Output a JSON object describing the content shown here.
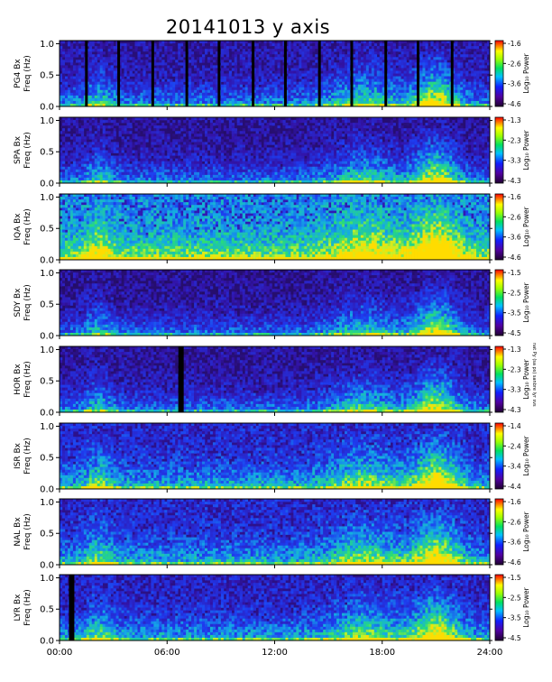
{
  "title": "20141013 y axis",
  "side_note": "nat Py (sa ps) sanbre lyr svs",
  "colors": {
    "background": "#ffffff",
    "spectrogram_low": "#1a1060",
    "spectrogram_mid": "#2040e0",
    "spectrogram_high": "#20c0c0",
    "hot": "#ffff00"
  },
  "chart_data": {
    "type": "heatmap",
    "xlabel": "",
    "x_ticks": [
      "00:00",
      "06:00",
      "12:00",
      "18:00",
      "24:00"
    ],
    "xlim": [
      0,
      24
    ],
    "y_ticks": [
      "1.0",
      "0.5",
      "0.0"
    ],
    "ylim": [
      0,
      1.05
    ],
    "colorbar_label": "Log₁₀ Power",
    "panels": [
      {
        "station": "PG4",
        "ylabel": "PG4 Bx",
        "ylabel2": "Freq (Hz)",
        "cbar_ticks": [
          "-1.6",
          "-2.6",
          "-3.6",
          "-4.6"
        ],
        "base": 0.25,
        "gaps": [
          1.5,
          3.3,
          5.2,
          7.1,
          8.9,
          10.8,
          12.6,
          14.5,
          16.3,
          18.2,
          20.0,
          21.9
        ]
      },
      {
        "station": "SPA",
        "ylabel": "SPA Bx",
        "ylabel2": "Freq (Hz)",
        "cbar_ticks": [
          "-1.3",
          "-2.3",
          "-3.3",
          "-4.3"
        ],
        "base": 0.22,
        "gaps": []
      },
      {
        "station": "IQA",
        "ylabel": "IQA Bx",
        "ylabel2": "Freq (Hz)",
        "cbar_ticks": [
          "-1.6",
          "-2.6",
          "-3.6",
          "-4.6"
        ],
        "base": 0.55,
        "gaps": []
      },
      {
        "station": "SDY",
        "ylabel": "SDY Bx",
        "ylabel2": "Freq (Hz)",
        "cbar_ticks": [
          "-1.5",
          "-2.5",
          "-3.5",
          "-4.5"
        ],
        "base": 0.2,
        "gaps": []
      },
      {
        "station": "HOR",
        "ylabel": "HOR Bx",
        "ylabel2": "Freq (Hz)",
        "cbar_ticks": [
          "-1.3",
          "-2.3",
          "-3.3",
          "-4.3"
        ],
        "base": 0.22,
        "gaps": [
          6.7
        ]
      },
      {
        "station": "ISR",
        "ylabel": "ISR Bx",
        "ylabel2": "Freq (Hz)",
        "cbar_ticks": [
          "-1.4",
          "-2.4",
          "-3.4",
          "-4.4"
        ],
        "base": 0.35,
        "gaps": []
      },
      {
        "station": "NAL",
        "ylabel": "NAL Bx",
        "ylabel2": "Freq (Hz)",
        "cbar_ticks": [
          "-1.6",
          "-2.6",
          "-3.6",
          "-4.6"
        ],
        "base": 0.35,
        "gaps": []
      },
      {
        "station": "LYR",
        "ylabel": "LYR Bx",
        "ylabel2": "Freq (Hz)",
        "cbar_ticks": [
          "-1.5",
          "-2.5",
          "-3.5",
          "-4.5"
        ],
        "base": 0.32,
        "gaps": [
          0.6
        ]
      }
    ]
  }
}
